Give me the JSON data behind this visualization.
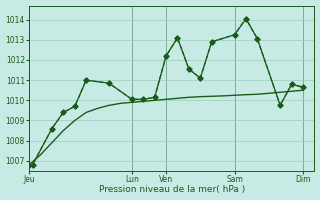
{
  "background_color": "#c8eae4",
  "grid_color": "#99ccbb",
  "line_color": "#1a5c1a",
  "xlabel": "Pression niveau de la mer( hPa )",
  "ylim": [
    1006.5,
    1014.7
  ],
  "yticks": [
    1007,
    1008,
    1009,
    1010,
    1011,
    1012,
    1013,
    1014
  ],
  "day_labels": [
    "Jeu",
    "Lun",
    "Ven",
    "Sam",
    "Dim"
  ],
  "day_positions": [
    0,
    9,
    12,
    18,
    24
  ],
  "xlim": [
    0,
    25
  ],
  "series1_x": [
    0,
    0.3,
    2,
    3,
    4,
    5,
    7,
    9,
    10,
    11,
    12,
    13,
    14,
    15,
    16,
    18,
    19,
    20,
    22,
    23,
    24
  ],
  "series1_y": [
    1006.8,
    1006.8,
    1008.6,
    1009.4,
    1009.7,
    1011.0,
    1010.85,
    1010.05,
    1010.05,
    1010.15,
    1012.2,
    1013.1,
    1011.55,
    1011.1,
    1012.9,
    1013.25,
    1014.05,
    1013.05,
    1009.75,
    1010.8,
    1010.65
  ],
  "series2_x": [
    0,
    0.3,
    2,
    3,
    4,
    5,
    7,
    9,
    10,
    11,
    12,
    13,
    14,
    15,
    16,
    18,
    19,
    20,
    22,
    23,
    24
  ],
  "series2_y": [
    1006.8,
    1006.8,
    1008.6,
    1009.4,
    1009.7,
    1011.0,
    1010.85,
    1010.05,
    1010.05,
    1010.15,
    1012.2,
    1013.1,
    1011.55,
    1011.1,
    1012.9,
    1013.25,
    1014.05,
    1013.05,
    1009.75,
    1010.8,
    1010.65
  ],
  "series3_x": [
    0,
    1,
    2,
    3,
    4,
    5,
    6,
    7,
    8,
    9,
    10,
    11,
    12,
    13,
    14,
    15,
    16,
    17,
    18,
    19,
    20,
    21,
    22,
    23,
    24
  ],
  "series3_y": [
    1006.8,
    1007.3,
    1007.9,
    1008.5,
    1009.0,
    1009.4,
    1009.6,
    1009.75,
    1009.85,
    1009.9,
    1009.95,
    1010.0,
    1010.05,
    1010.1,
    1010.15,
    1010.18,
    1010.2,
    1010.22,
    1010.25,
    1010.28,
    1010.3,
    1010.35,
    1010.4,
    1010.45,
    1010.5
  ]
}
